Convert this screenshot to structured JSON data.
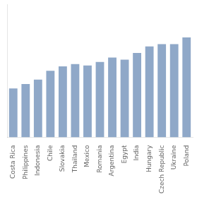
{
  "chart_data": {
    "type": "bar",
    "categories": [
      "Costa Rica",
      "Philippines",
      "Indonesia",
      "Chile",
      "Slovakia",
      "Thailand",
      "Mexico",
      "Romania",
      "Argentina",
      "Egypt",
      "India",
      "Hungary",
      "Czech Republic",
      "Ukraine",
      "Poland"
    ],
    "values": [
      11,
      12,
      13,
      15,
      16,
      16.5,
      16.2,
      17,
      18,
      17.5,
      19,
      20.5,
      21,
      21,
      22.5
    ],
    "color": "#8fa8c8",
    "ylim": [
      0,
      30
    ],
    "grid": false,
    "tick_labels": "x"
  }
}
